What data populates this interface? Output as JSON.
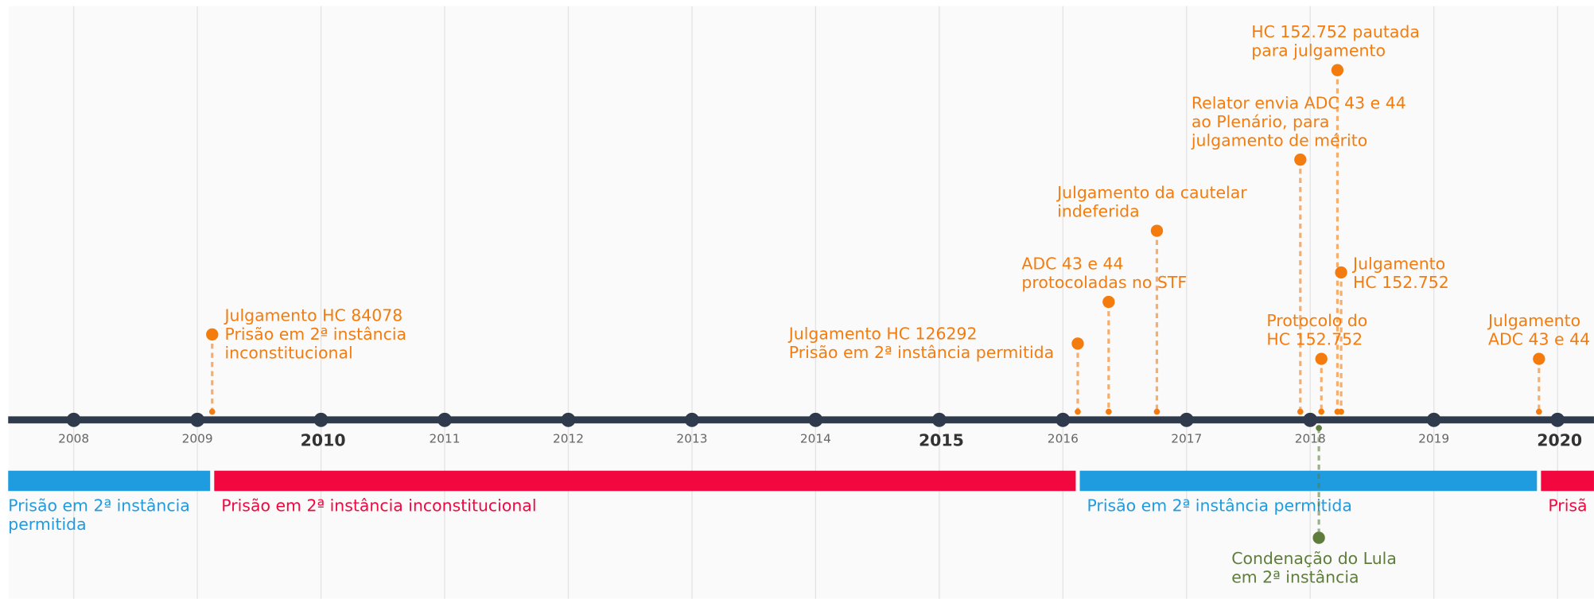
{
  "chart_data": {
    "type": "timeline",
    "xlim": [
      2007.47,
      2020.27
    ],
    "xticks": [
      2008,
      2009,
      2010,
      2011,
      2012,
      2013,
      2014,
      2015,
      2016,
      2017,
      2018,
      2019,
      2020
    ],
    "grid": true,
    "axis_color": "#2f3b4c",
    "event_color": "#f47c0e",
    "events": [
      {
        "date": 2009.12,
        "lines": [
          "Julgamento HC 84078",
          "Prisão em 2ª instância",
          "inconstitucional"
        ]
      },
      {
        "date": 2016.12,
        "lines": [
          "Julgamento HC 126292",
          "Prisão em 2ª instância permitida"
        ]
      },
      {
        "date": 2016.37,
        "lines": [
          "ADC 43 e 44",
          "protocoladas no STF"
        ]
      },
      {
        "date": 2016.76,
        "lines": [
          "Julgamento da cautelar",
          "indeferida"
        ]
      },
      {
        "date": 2017.92,
        "lines": [
          "Relator envia ADC 43 e 44",
          "ao Plenário, para",
          "julgamento de mérito"
        ]
      },
      {
        "date": 2018.09,
        "lines": [
          "Protocolo do",
          "HC 152.752"
        ]
      },
      {
        "date": 2018.22,
        "lines": [
          "HC 152.752 pautada",
          "para julgamento"
        ]
      },
      {
        "date": 2018.25,
        "lines": [
          "Julgamento",
          "HC 152.752"
        ]
      },
      {
        "date": 2019.85,
        "lines": [
          "Julgamento",
          "ADC 43 e 44"
        ]
      }
    ],
    "lower_events": [
      {
        "date": 2018.07,
        "color": "#5e7d3c",
        "lines": [
          "Condenação do Lula",
          "em 2ª instância"
        ]
      }
    ],
    "periods": [
      {
        "start": 2007.47,
        "color": "#1f9be0",
        "lines": [
          "Prisão em 2ª instância",
          "permitida"
        ]
      },
      {
        "start": 2009.12,
        "color": "#f2073f",
        "lines": [
          "Prisão em 2ª instância inconstitucional"
        ]
      },
      {
        "start": 2016.12,
        "color": "#1f9be0",
        "lines": [
          "Prisão em 2ª instância permitida"
        ]
      },
      {
        "start": 2019.85,
        "color": "#f2073f",
        "lines": [
          "Prisã"
        ]
      }
    ]
  }
}
